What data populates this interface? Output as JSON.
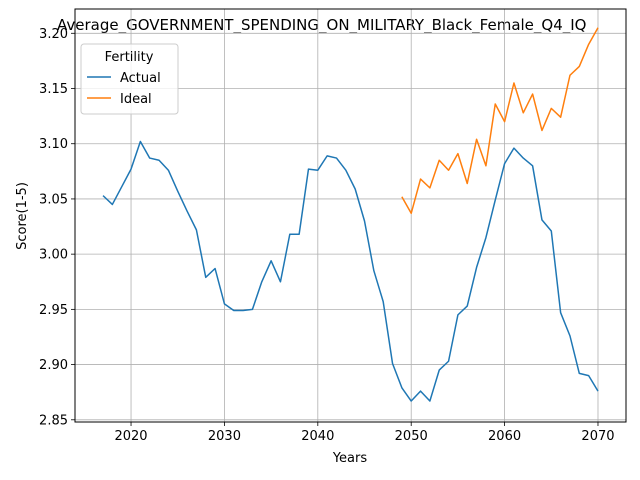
{
  "chart_data": {
    "type": "line",
    "title": "Average_GOVERNMENT_SPENDING_ON_MILITARY_Black_Female_Q4_IQ",
    "xlabel": "Years",
    "ylabel": "Score(1-5)",
    "xlim": [
      2014,
      2073
    ],
    "ylim": [
      2.848,
      3.222
    ],
    "xticks": [
      2020,
      2030,
      2040,
      2050,
      2060,
      2070
    ],
    "yticks": [
      2.85,
      2.9,
      2.95,
      3.0,
      3.05,
      3.1,
      3.15,
      3.2
    ],
    "ytick_labels": [
      "2.85",
      "2.90",
      "2.95",
      "3.00",
      "3.05",
      "3.10",
      "3.15",
      "3.20"
    ],
    "grid": true,
    "legend": {
      "title": "Fertility",
      "placement": "upper-left"
    },
    "series": [
      {
        "name": "Actual",
        "color": "#1f77b4",
        "x": [
          2017,
          2018,
          2019,
          2020,
          2021,
          2022,
          2023,
          2024,
          2025,
          2026,
          2027,
          2028,
          2029,
          2030,
          2031,
          2032,
          2033,
          2034,
          2035,
          2036,
          2037,
          2038,
          2039,
          2040,
          2041,
          2042,
          2043,
          2044,
          2045,
          2046,
          2047,
          2048,
          2049,
          2050,
          2051,
          2052,
          2053,
          2054,
          2055,
          2056,
          2057,
          2058,
          2059,
          2060,
          2061,
          2062,
          2063,
          2064,
          2065,
          2066,
          2067,
          2068,
          2069,
          2070
        ],
        "y": [
          3.053,
          3.045,
          3.061,
          3.077,
          3.102,
          3.087,
          3.085,
          3.076,
          3.057,
          3.039,
          3.022,
          2.979,
          2.987,
          2.955,
          2.949,
          2.949,
          2.95,
          2.975,
          2.994,
          2.975,
          3.018,
          3.018,
          3.077,
          3.076,
          3.089,
          3.087,
          3.076,
          3.059,
          3.03,
          2.985,
          2.957,
          2.901,
          2.879,
          2.867,
          2.876,
          2.867,
          2.895,
          2.903,
          2.945,
          2.953,
          2.988,
          3.015,
          3.049,
          3.082,
          3.096,
          3.087,
          3.08,
          3.031,
          3.021,
          2.947,
          2.926,
          2.892,
          2.89,
          2.876
        ]
      },
      {
        "name": "Ideal",
        "color": "#ff7f0e",
        "x": [
          2049,
          2050,
          2051,
          2052,
          2053,
          2054,
          2055,
          2056,
          2057,
          2058,
          2059,
          2060,
          2061,
          2062,
          2063,
          2064,
          2065,
          2066,
          2067,
          2068,
          2069,
          2070
        ],
        "y": [
          3.052,
          3.037,
          3.068,
          3.06,
          3.085,
          3.076,
          3.091,
          3.064,
          3.104,
          3.08,
          3.136,
          3.12,
          3.155,
          3.128,
          3.145,
          3.112,
          3.132,
          3.124,
          3.162,
          3.17,
          3.19,
          3.205
        ]
      }
    ]
  }
}
